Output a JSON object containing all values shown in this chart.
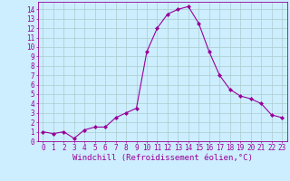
{
  "x": [
    0,
    1,
    2,
    3,
    4,
    5,
    6,
    7,
    8,
    9,
    10,
    11,
    12,
    13,
    14,
    15,
    16,
    17,
    18,
    19,
    20,
    21,
    22,
    23
  ],
  "y": [
    1.0,
    0.8,
    1.0,
    0.3,
    1.2,
    1.5,
    1.5,
    2.5,
    3.0,
    3.5,
    9.5,
    12.0,
    13.5,
    14.0,
    14.3,
    12.5,
    9.5,
    7.0,
    5.5,
    4.8,
    4.5,
    4.0,
    2.8,
    2.5
  ],
  "line_color": "#990099",
  "marker": "D",
  "marker_size": 2,
  "bg_color": "#cceeff",
  "grid_color": "#aacccc",
  "xlabel": "Windchill (Refroidissement éolien,°C)",
  "xlim": [
    -0.5,
    23.5
  ],
  "ylim": [
    0,
    14.8
  ],
  "xticks": [
    0,
    1,
    2,
    3,
    4,
    5,
    6,
    7,
    8,
    9,
    10,
    11,
    12,
    13,
    14,
    15,
    16,
    17,
    18,
    19,
    20,
    21,
    22,
    23
  ],
  "yticks": [
    0,
    1,
    2,
    3,
    4,
    5,
    6,
    7,
    8,
    9,
    10,
    11,
    12,
    13,
    14
  ],
  "tick_label_fontsize": 5.5,
  "xlabel_fontsize": 6.5,
  "tick_color": "#990099",
  "axis_color": "#990099"
}
